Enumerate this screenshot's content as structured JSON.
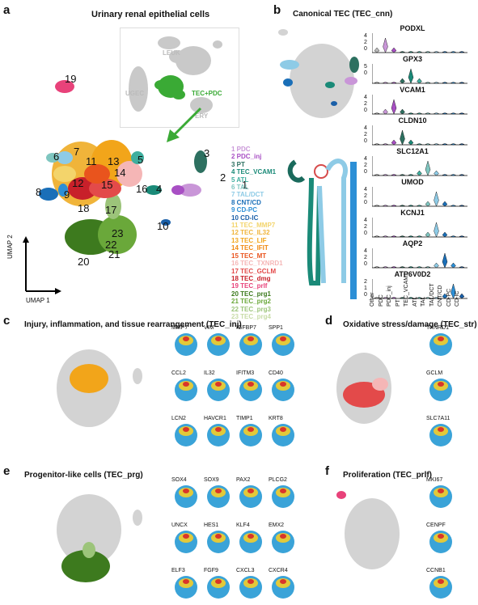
{
  "panels": {
    "a": {
      "letter": "a",
      "title": "Urinary renal epithelial cells",
      "inset": {
        "leuk": "LEUK",
        "ugec": "UGEC",
        "tec": "TEC+PDC",
        "ery": "ERY"
      },
      "umap1": "UMAP 1",
      "umap2": "UMAP 2"
    },
    "b": {
      "letter": "b",
      "title": "Canonical TEC (TEC_cnn)"
    },
    "c": {
      "letter": "c",
      "title": "Injury, inflammation, and tissue rearrangement (TEC_inj)"
    },
    "d": {
      "letter": "d",
      "title": "Oxidative stress/damage (TEC_str)"
    },
    "e": {
      "letter": "e",
      "title": "Progenitor-like cells (TEC_prg)"
    },
    "f": {
      "letter": "f",
      "title": "Proliferation (TEC_prlf)"
    }
  },
  "legend": [
    {
      "label": "1 PDC",
      "color": "#c996d8"
    },
    {
      "label": "2 PDC_inj",
      "color": "#a84fc4"
    },
    {
      "label": "3 PT",
      "color": "#2d7060"
    },
    {
      "label": "4 TEC_VCAM1",
      "color": "#1a8a78"
    },
    {
      "label": "5 ATL",
      "color": "#3fae9e"
    },
    {
      "label": "6 TAL",
      "color": "#7fc6c0"
    },
    {
      "label": "7 TAL/DCT",
      "color": "#8ecbe6"
    },
    {
      "label": "8 CNT/CD",
      "color": "#1a6fb8"
    },
    {
      "label": "9 CD-PC",
      "color": "#2c8fd6"
    },
    {
      "label": "10 CD-IC",
      "color": "#1a5fa8"
    },
    {
      "label": "11 TEC_MMP7",
      "color": "#f3d46b"
    },
    {
      "label": "12 TEC_IL32",
      "color": "#f0b43a"
    },
    {
      "label": "13 TEC_LIF",
      "color": "#f2a51a"
    },
    {
      "label": "14 TEC_IFIT",
      "color": "#f08a12"
    },
    {
      "label": "15 TEC_MT",
      "color": "#e9541d"
    },
    {
      "label": "16 TEC_TXNRD1",
      "color": "#f5b6b6"
    },
    {
      "label": "17 TEC_GCLM",
      "color": "#e34a4a"
    },
    {
      "label": "18 TEC_dmg",
      "color": "#c8202a"
    },
    {
      "label": "19 TEC_prlf",
      "color": "#e8427a"
    },
    {
      "label": "20 TEC_prg1",
      "color": "#3d7a1e"
    },
    {
      "label": "21 TEC_prg2",
      "color": "#6aa83a"
    },
    {
      "label": "22 TEC_prg3",
      "color": "#9cc47a"
    },
    {
      "label": "23 TEC_prg4",
      "color": "#c8dca8"
    }
  ],
  "cluster_numbers": [
    "1",
    "2",
    "3",
    "4",
    "5",
    "6",
    "7",
    "8",
    "9",
    "10",
    "11",
    "12",
    "13",
    "14",
    "15",
    "16",
    "17",
    "18",
    "19",
    "20",
    "21",
    "22",
    "23"
  ],
  "violin": {
    "genes": [
      "PODXL",
      "GPX3",
      "VCAM1",
      "CLDN10",
      "SLC12A1",
      "UMOD",
      "KCNJ1",
      "AQP2",
      "ATP6V0D2"
    ],
    "y_ticks": [
      [
        "4",
        "2",
        "0"
      ],
      [
        "5",
        "0"
      ],
      [
        "4",
        "2",
        "0"
      ],
      [
        "4",
        "2",
        "0"
      ],
      [
        "4",
        "2",
        "0"
      ],
      [
        "4",
        "2",
        "0"
      ],
      [
        "4",
        "2",
        "0"
      ],
      [
        "4",
        "2",
        "0"
      ],
      [
        "2",
        "1",
        "0"
      ]
    ],
    "groups": [
      "Other",
      "PDC",
      "PDC_inj",
      "PT",
      "TEC_VCAM1",
      "ATL",
      "TAL",
      "TAL/DCT",
      "CNT/CD",
      "CD-PC",
      "CD-IC"
    ]
  },
  "genes_c": [
    "MMP7",
    "VIM",
    "IGFBP7",
    "SPP1",
    "CCL2",
    "IL32",
    "IFITM3",
    "CD40",
    "LCN2",
    "HAVCR1",
    "TIMP1",
    "KRT8"
  ],
  "genes_d": [
    "TXNRD1",
    "GCLM",
    "SLC7A11"
  ],
  "genes_e": [
    "SOX4",
    "SOX9",
    "PAX2",
    "PLCG2",
    "UNCX",
    "HES1",
    "KLF4",
    "EMX2",
    "ELF3",
    "FGF9",
    "CXCL3",
    "CXCR4"
  ],
  "genes_f": [
    "MKI67",
    "CENPF",
    "CCNB1"
  ],
  "colors": {
    "grey": "#cfcfcf",
    "green": "#3aaa35",
    "teal": "#1a7f6e",
    "blue": "#2a8fd6"
  }
}
